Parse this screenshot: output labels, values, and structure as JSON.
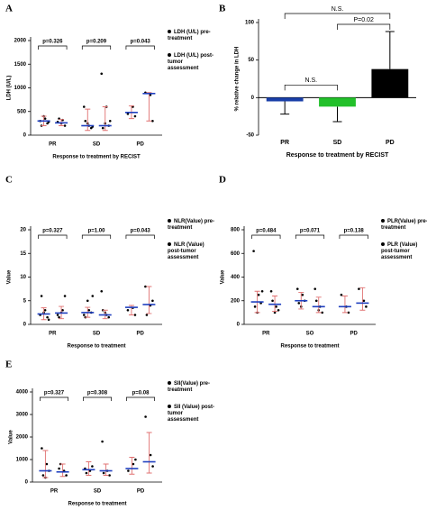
{
  "chart_data": [
    {
      "type": "dot",
      "panel": "A",
      "ylabel": "LDH (U/L)",
      "xlabel": "Response to treatment  by RECIST",
      "categories": [
        "PR",
        "SD",
        "PD"
      ],
      "ylim": [
        0,
        2000
      ],
      "yticks": [
        0,
        500,
        1000,
        1500,
        2000
      ],
      "pvalues": [
        "p=0.326",
        "p=0.209",
        "p=0.043"
      ],
      "series": [
        {
          "name": "LDH (U/L) pre-treatment",
          "color": "#000000",
          "groups": [
            {
              "points": [
                300,
                350,
                250,
                200,
                400,
                280
              ],
              "center": 300,
              "low": 200,
              "high": 400
            },
            {
              "points": [
                600,
                200,
                150,
                300,
                250,
                180
              ],
              "center": 200,
              "low": 100,
              "high": 550
            },
            {
              "points": [
                450,
                600,
                400
              ],
              "center": 480,
              "low": 350,
              "high": 620
            }
          ]
        },
        {
          "name": "LDH (U/L) post-tumor assessment",
          "color": "#000000",
          "groups": [
            {
              "points": [
                280,
                320,
                200,
                350,
                250
              ],
              "center": 260,
              "low": 200,
              "high": 330
            },
            {
              "points": [
                1300,
                600,
                200,
                150,
                250,
                300
              ],
              "center": 200,
              "low": 100,
              "high": 600
            },
            {
              "points": [
                900,
                850,
                300
              ],
              "center": 880,
              "low": 300,
              "high": 900
            }
          ]
        }
      ]
    },
    {
      "type": "bar",
      "panel": "B",
      "ylabel": "% relative change in LDH",
      "xlabel": "Response to treatment  by RECIST",
      "categories": [
        "PR",
        "SD",
        "PD"
      ],
      "values": [
        -5,
        -12,
        38
      ],
      "errors": [
        17,
        20,
        50
      ],
      "colors": [
        "#1a3fa8",
        "#22c02a",
        "#000000"
      ],
      "ylim": [
        -50,
        100
      ],
      "yticks": [
        -50,
        0,
        50,
        100
      ],
      "annotations": [
        "N.S.",
        "P=0.02",
        "N.S."
      ]
    },
    {
      "type": "dot",
      "panel": "C",
      "ylabel": "Value",
      "xlabel": "Response to treatment",
      "categories": [
        "PR",
        "SD",
        "PD"
      ],
      "ylim": [
        0,
        20
      ],
      "yticks": [
        0,
        5,
        10,
        15,
        20
      ],
      "pvalues": [
        "p=0.327",
        "p=1.00",
        "p=0.043"
      ],
      "series": [
        {
          "name": "NLR(Value) pre-treatment",
          "color": "#000000",
          "groups": [
            {
              "points": [
                2,
                3,
                1.5,
                6,
                2.5,
                1
              ],
              "center": 2.2,
              "low": 1,
              "high": 3.5
            },
            {
              "points": [
                2,
                3,
                2.5,
                1.5,
                5,
                6
              ],
              "center": 2.5,
              "low": 1.5,
              "high": 3.6
            },
            {
              "points": [
                3,
                3.5,
                2
              ],
              "center": 3.6,
              "low": 2,
              "high": 4
            }
          ]
        },
        {
          "name": "NLR (Value) post-tumor assessment",
          "color": "#000000",
          "groups": [
            {
              "points": [
                2,
                3,
                6,
                1.5,
                2.5
              ],
              "center": 2.4,
              "low": 1.2,
              "high": 3.8
            },
            {
              "points": [
                7,
                2,
                1.5,
                3,
                2.5
              ],
              "center": 2,
              "low": 1.2,
              "high": 3
            },
            {
              "points": [
                8,
                4,
                5,
                2
              ],
              "center": 4.2,
              "low": 2.3,
              "high": 8
            }
          ]
        }
      ]
    },
    {
      "type": "dot",
      "panel": "D",
      "ylabel": "Value",
      "xlabel": "Response to treatment",
      "categories": [
        "PR",
        "SO",
        "PD"
      ],
      "ylim": [
        0,
        800
      ],
      "yticks": [
        0,
        200,
        400,
        600,
        800
      ],
      "pvalues": [
        "p=0.484",
        "p=0.071",
        "p=0.138"
      ],
      "series": [
        {
          "name": "PLR(Value) pre-treatment",
          "color": "#000000",
          "groups": [
            {
              "points": [
                620,
                250,
                180,
                150,
                100,
                280
              ],
              "center": 190,
              "low": 100,
              "high": 280
            },
            {
              "points": [
                300,
                250,
                200,
                180,
                150
              ],
              "center": 200,
              "low": 130,
              "high": 270
            },
            {
              "points": [
                250,
                150,
                100
              ],
              "center": 150,
              "low": 100,
              "high": 240
            }
          ]
        },
        {
          "name": "PLR (Value) post-tumor assessment",
          "color": "#000000",
          "groups": [
            {
              "points": [
                280,
                150,
                120,
                200,
                100
              ],
              "center": 170,
              "low": 110,
              "high": 240
            },
            {
              "points": [
                300,
                150,
                100,
                200,
                120
              ],
              "center": 150,
              "low": 100,
              "high": 230
            },
            {
              "points": [
                300,
                200,
                150
              ],
              "center": 180,
              "low": 120,
              "high": 310
            }
          ]
        }
      ]
    },
    {
      "type": "dot",
      "panel": "E",
      "ylabel": "Value",
      "xlabel": "Response to treatment",
      "categories": [
        "PR",
        "SD",
        "PD"
      ],
      "ylim": [
        0,
        4000
      ],
      "yticks": [
        0,
        1000,
        2000,
        3000,
        4000
      ],
      "pvalues": [
        "p=0.327",
        "p=0.308",
        "p=0.08"
      ],
      "series": [
        {
          "name": "SII(Value) pre-treatment",
          "color": "#000000",
          "groups": [
            {
              "points": [
                1500,
                800,
                500,
                300,
                200
              ],
              "center": 500,
              "low": 200,
              "high": 1400
            },
            {
              "points": [
                600,
                500,
                700,
                400
              ],
              "center": 550,
              "low": 300,
              "high": 900
            },
            {
              "points": [
                500,
                800,
                1000
              ],
              "center": 600,
              "low": 350,
              "high": 1100
            }
          ]
        },
        {
          "name": "SII (Value) post-tumor assessment",
          "color": "#000000",
          "groups": [
            {
              "points": [
                600,
                500,
                300,
                800
              ],
              "center": 450,
              "low": 250,
              "high": 800
            },
            {
              "points": [
                1800,
                500,
                300,
                400
              ],
              "center": 500,
              "low": 300,
              "high": 800
            },
            {
              "points": [
                2900,
                1200,
                700
              ],
              "center": 900,
              "low": 400,
              "high": 2200
            }
          ]
        }
      ]
    }
  ]
}
